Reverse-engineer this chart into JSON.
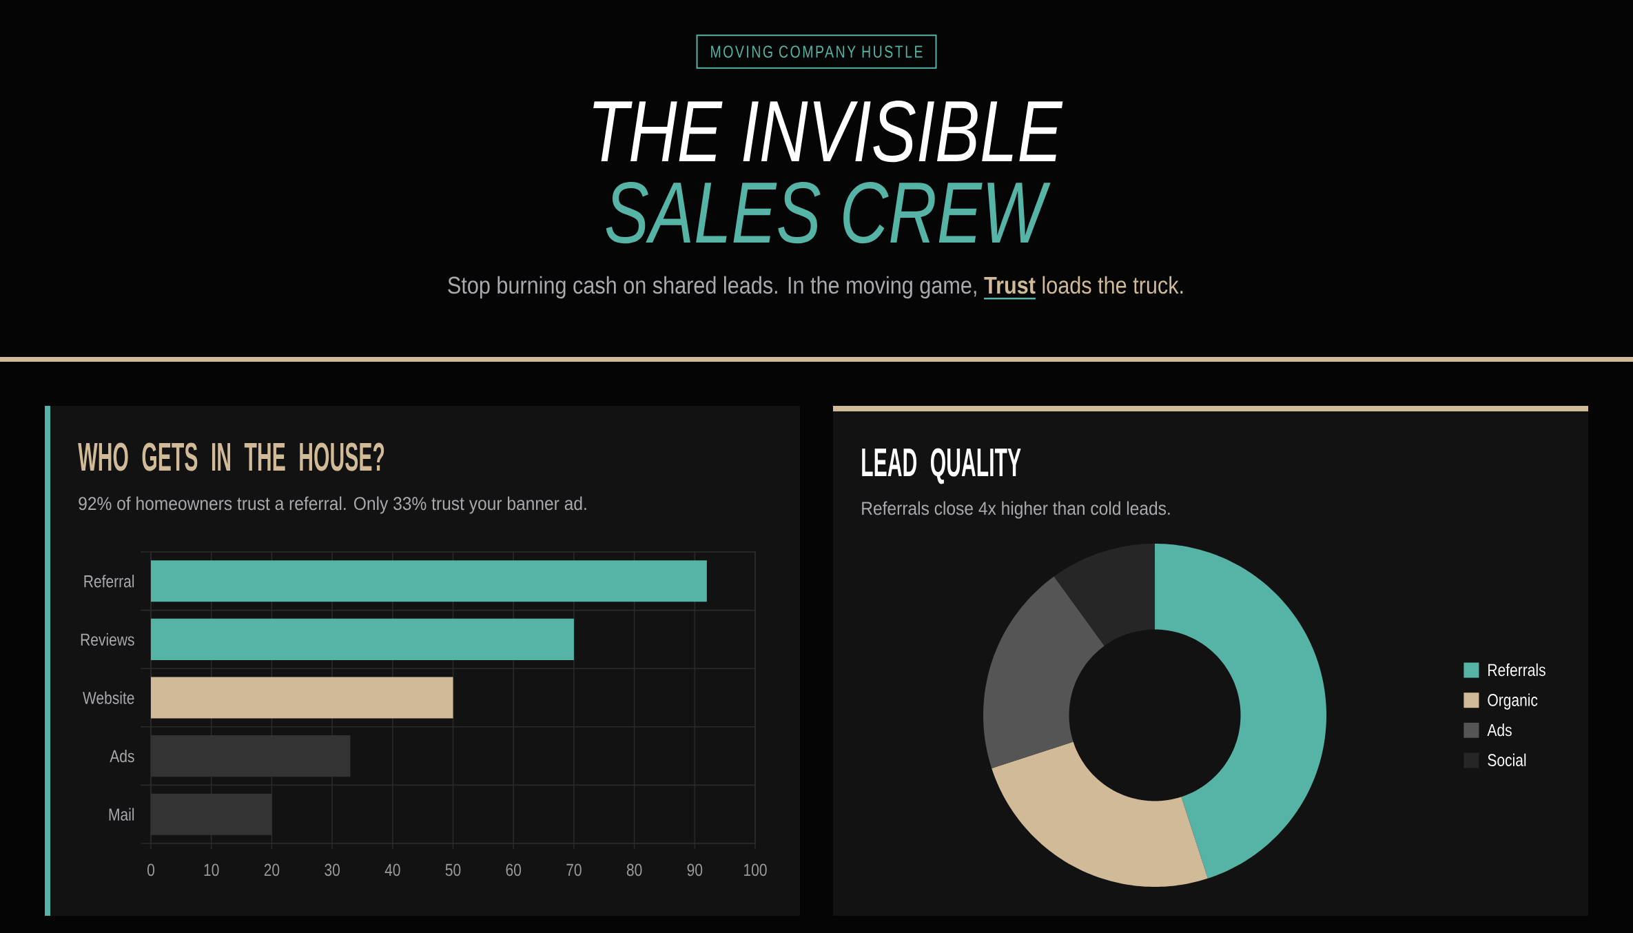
{
  "chart_data": [
    {
      "type": "other",
      "title": "THE INVISIBLE",
      "subtitle": "Stop burning cash on shared leads. In the moving game, **Trust** loads the truck.",
      "annotations": [
        "MOVING COMPANY HUSTLE",
        "SALES CREW"
      ]
    },
    {
      "type": "bar",
      "orientation": "horizontal",
      "title": "WHO GETS IN THE HOUSE?",
      "subtitle": "92% of homeowners trust a referral. Only 33% trust your banner ad.",
      "categories": [
        "Referral",
        "Reviews",
        "Website",
        "Ads",
        "Mail"
      ],
      "values": [
        92,
        70,
        50,
        33,
        20
      ],
      "colors": [
        "#56b4a6",
        "#56b4a6",
        "#d1ba98",
        "#333333",
        "#333333"
      ],
      "xlim": [
        0,
        100
      ],
      "xticks": [
        0,
        10,
        20,
        30,
        40,
        50,
        60,
        70,
        80,
        90,
        100
      ],
      "grid": true
    },
    {
      "type": "donut",
      "title": "LEAD QUALITY",
      "subtitle": "Referrals close 4x higher than cold leads.",
      "categories": [
        "Referrals",
        "Organic",
        "Ads",
        "Social"
      ],
      "values": [
        45,
        25,
        20,
        10
      ],
      "colors": [
        "#56b4a6",
        "#d1ba98",
        "#555555",
        "#262626"
      ],
      "legend": "right"
    }
  ]
}
